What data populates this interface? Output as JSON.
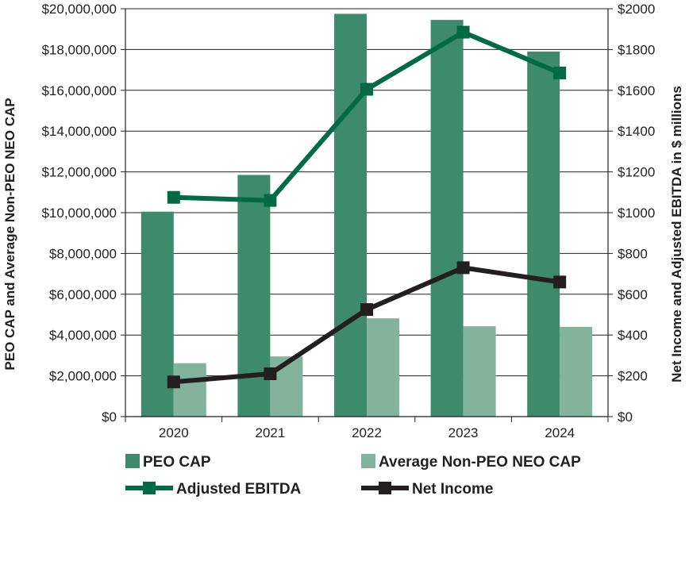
{
  "chart_data": {
    "type": "bar",
    "categories": [
      "2020",
      "2021",
      "2022",
      "2023",
      "2024"
    ],
    "series": [
      {
        "name": "PEO CAP",
        "kind": "bar",
        "axis": "left",
        "color": "#3e8a6c",
        "values": [
          10050000,
          11850000,
          19750000,
          19450000,
          17900000
        ]
      },
      {
        "name": "Average Non-PEO NEO CAP",
        "kind": "bar",
        "axis": "left",
        "color": "#82b49d",
        "values": [
          2620000,
          2950000,
          4820000,
          4430000,
          4400000
        ]
      },
      {
        "name": "Adjusted EBITDA",
        "kind": "line",
        "axis": "right",
        "color": "#006b45",
        "values": [
          1075,
          1060,
          1605,
          1885,
          1685
        ]
      },
      {
        "name": "Net Income",
        "kind": "line",
        "axis": "right",
        "color": "#231f20",
        "values": [
          170,
          210,
          525,
          730,
          660
        ]
      }
    ],
    "left_axis": {
      "title": "PEO CAP and Average Non-PEO NEO CAP",
      "ylim": [
        0,
        20000000
      ],
      "ticks": [
        "$0",
        "$2,000,000",
        "$4,000,000",
        "$6,000,000",
        "$8,000,000",
        "$10,000,000",
        "$12,000,000",
        "$14,000,000",
        "$16,000,000",
        "$18,000,000",
        "$20,000,000"
      ]
    },
    "right_axis": {
      "title": "Net Income and Adjusted EBITDA in $ millions",
      "ylim": [
        0,
        2000
      ],
      "ticks": [
        "$0",
        "$200",
        "$400",
        "$600",
        "$800",
        "$1000",
        "$1200",
        "$1400",
        "$1600",
        "$1800",
        "$2000"
      ]
    },
    "grid": true,
    "legend": {
      "position": "bottom",
      "items": [
        "PEO CAP",
        "Average Non-PEO NEO CAP",
        "Adjusted EBITDA",
        "Net Income"
      ]
    }
  }
}
